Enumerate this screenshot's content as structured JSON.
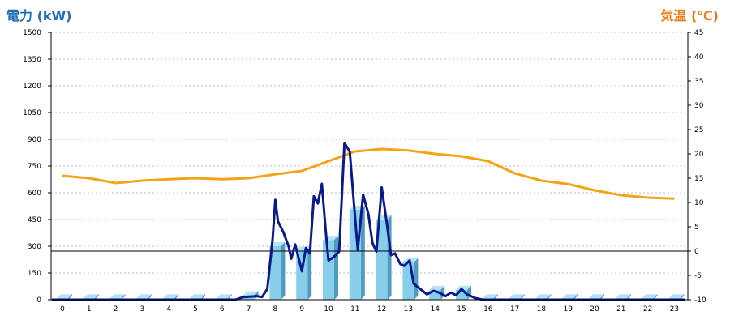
{
  "chart_data": {
    "type": "bar+line",
    "left_axis_label": "電力 (kW)",
    "right_axis_label": "気温 (℃)",
    "x_ticks": [
      "0",
      "1",
      "2",
      "3",
      "4",
      "5",
      "6",
      "7",
      "8",
      "9",
      "10",
      "11",
      "12",
      "13",
      "14",
      "15",
      "16",
      "17",
      "18",
      "19",
      "20",
      "21",
      "22",
      "23"
    ],
    "y_left": {
      "min": 0,
      "max": 1500,
      "ticks": [
        0,
        150,
        300,
        450,
        600,
        750,
        900,
        1050,
        1200,
        1350,
        1500
      ]
    },
    "y_right": {
      "min": -10,
      "max": 45,
      "ticks": [
        -10,
        -5,
        0,
        5,
        10,
        15,
        20,
        25,
        30,
        35,
        40,
        45
      ]
    },
    "grid": true,
    "bars": [
      {
        "x": 0,
        "value": 8
      },
      {
        "x": 1,
        "value": 8
      },
      {
        "x": 2,
        "value": 8
      },
      {
        "x": 3,
        "value": 8
      },
      {
        "x": 4,
        "value": 8
      },
      {
        "x": 5,
        "value": 8
      },
      {
        "x": 6,
        "value": 8
      },
      {
        "x": 7,
        "value": 25
      },
      {
        "x": 8,
        "value": 300
      },
      {
        "x": 9,
        "value": 275
      },
      {
        "x": 10,
        "value": 335
      },
      {
        "x": 11,
        "value": 505
      },
      {
        "x": 12,
        "value": 450
      },
      {
        "x": 13,
        "value": 210
      },
      {
        "x": 14,
        "value": 55
      },
      {
        "x": 15,
        "value": 55
      },
      {
        "x": 16,
        "value": 8
      },
      {
        "x": 17,
        "value": 8
      },
      {
        "x": 18,
        "value": 8
      },
      {
        "x": 19,
        "value": 8
      },
      {
        "x": 20,
        "value": 8
      },
      {
        "x": 21,
        "value": 8
      },
      {
        "x": 22,
        "value": 8
      },
      {
        "x": 23,
        "value": 8
      }
    ],
    "power_line": [
      [
        -0.4,
        0
      ],
      [
        6.5,
        0
      ],
      [
        6.8,
        15
      ],
      [
        7.3,
        20
      ],
      [
        7.5,
        15
      ],
      [
        7.7,
        60
      ],
      [
        7.9,
        340
      ],
      [
        8.0,
        560
      ],
      [
        8.1,
        440
      ],
      [
        8.3,
        380
      ],
      [
        8.5,
        300
      ],
      [
        8.6,
        230
      ],
      [
        8.75,
        310
      ],
      [
        8.9,
        220
      ],
      [
        9.0,
        160
      ],
      [
        9.15,
        290
      ],
      [
        9.3,
        260
      ],
      [
        9.45,
        580
      ],
      [
        9.6,
        540
      ],
      [
        9.75,
        650
      ],
      [
        9.9,
        380
      ],
      [
        10.0,
        220
      ],
      [
        10.2,
        240
      ],
      [
        10.4,
        270
      ],
      [
        10.6,
        880
      ],
      [
        10.8,
        830
      ],
      [
        10.95,
        550
      ],
      [
        11.1,
        280
      ],
      [
        11.3,
        590
      ],
      [
        11.5,
        480
      ],
      [
        11.65,
        320
      ],
      [
        11.8,
        270
      ],
      [
        12.0,
        630
      ],
      [
        12.2,
        420
      ],
      [
        12.35,
        250
      ],
      [
        12.5,
        260
      ],
      [
        12.7,
        200
      ],
      [
        12.85,
        190
      ],
      [
        13.05,
        220
      ],
      [
        13.2,
        90
      ],
      [
        13.45,
        60
      ],
      [
        13.7,
        30
      ],
      [
        13.95,
        50
      ],
      [
        14.15,
        40
      ],
      [
        14.4,
        20
      ],
      [
        14.6,
        40
      ],
      [
        14.8,
        25
      ],
      [
        15.0,
        60
      ],
      [
        15.2,
        30
      ],
      [
        15.5,
        10
      ],
      [
        15.8,
        0
      ],
      [
        23.4,
        0
      ]
    ],
    "temperature_line": [
      [
        0,
        15.5
      ],
      [
        1,
        15
      ],
      [
        2,
        14
      ],
      [
        3,
        14.5
      ],
      [
        4,
        14.8
      ],
      [
        5,
        15
      ],
      [
        6,
        14.8
      ],
      [
        7,
        15
      ],
      [
        8,
        15.8
      ],
      [
        9,
        16.5
      ],
      [
        10,
        18.5
      ],
      [
        11,
        20.5
      ],
      [
        12,
        21
      ],
      [
        13,
        20.7
      ],
      [
        14,
        20
      ],
      [
        15,
        19.5
      ],
      [
        16,
        18.5
      ],
      [
        17,
        16
      ],
      [
        18,
        14.5
      ],
      [
        19,
        13.8
      ],
      [
        20,
        12.5
      ],
      [
        21,
        11.5
      ],
      [
        22,
        11
      ],
      [
        23,
        10.8
      ]
    ],
    "colors": {
      "bar": "#87ceeb",
      "power_line": "#0a1a8c",
      "temperature_line": "#f5a316",
      "left_title": "#1f6fb8",
      "right_title": "#f07a14"
    }
  }
}
